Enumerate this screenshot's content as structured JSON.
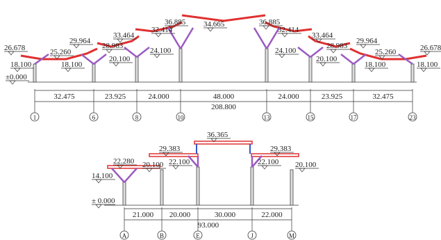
{
  "top_elevation": {
    "roof_levels": [
      "26.678",
      "25.260",
      "29.964",
      "28.983",
      "33.464",
      "32.414",
      "36.885",
      "34.665",
      "36.885",
      "32.414",
      "33.464",
      "28.983",
      "29.964",
      "25.260",
      "26.678"
    ],
    "column_levels": [
      "18.100",
      "18.100",
      "20.100",
      "24.100",
      "24.100",
      "20.100",
      "18.100",
      "18.100"
    ],
    "ground_level": "±0.000",
    "spans": [
      "32.475",
      "23.925",
      "24.000",
      "48.000",
      "24.000",
      "23.925",
      "32.475"
    ],
    "total_span": "208.800",
    "axes": [
      "1",
      "6",
      "8",
      "10",
      "13",
      "15",
      "17",
      "23"
    ]
  },
  "bottom_elevation": {
    "roof_levels": [
      "22.280",
      "29.383",
      "36.365",
      "29.383"
    ],
    "column_levels": [
      "14.100",
      "20.100",
      "22.100",
      "22.100",
      "20.100"
    ],
    "ground_level": "± 0.000",
    "spans": [
      "21.000",
      "20.000",
      "30.000",
      "22.000"
    ],
    "total_span": "93.000",
    "axes": [
      "A",
      "B",
      "E",
      "J",
      "M"
    ]
  }
}
